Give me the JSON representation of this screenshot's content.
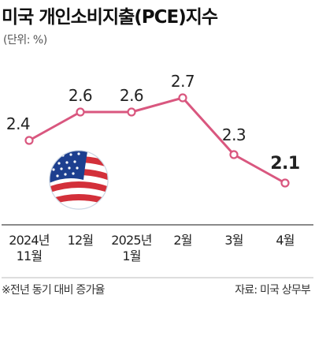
{
  "header": {
    "title": "미국 개인소비지출(PCE)지수",
    "unit": "(단위: %)"
  },
  "footer": {
    "footnote": "※전년 동기 대비 증가율",
    "source": "자료: 미국 상무부"
  },
  "colors": {
    "line": "#d9577f",
    "axis": "#444444",
    "divider": "#bbbbbb"
  },
  "icon": "us-flag-globe-icon",
  "chart_data": {
    "type": "line",
    "title": "미국 개인소비지출(PCE)지수",
    "unit": "%",
    "categories": [
      [
        "2024년",
        "11월"
      ],
      [
        "12월"
      ],
      [
        "2025년",
        "1월"
      ],
      [
        "2월"
      ],
      [
        "3월"
      ],
      [
        "4월"
      ]
    ],
    "values": [
      2.4,
      2.6,
      2.6,
      2.7,
      2.3,
      2.1
    ],
    "value_labels": [
      "2.4",
      "2.6",
      "2.6",
      "2.7",
      "2.3",
      "2.1"
    ],
    "ylim": [
      1.9,
      2.9
    ],
    "grid": false,
    "legend": "none"
  }
}
